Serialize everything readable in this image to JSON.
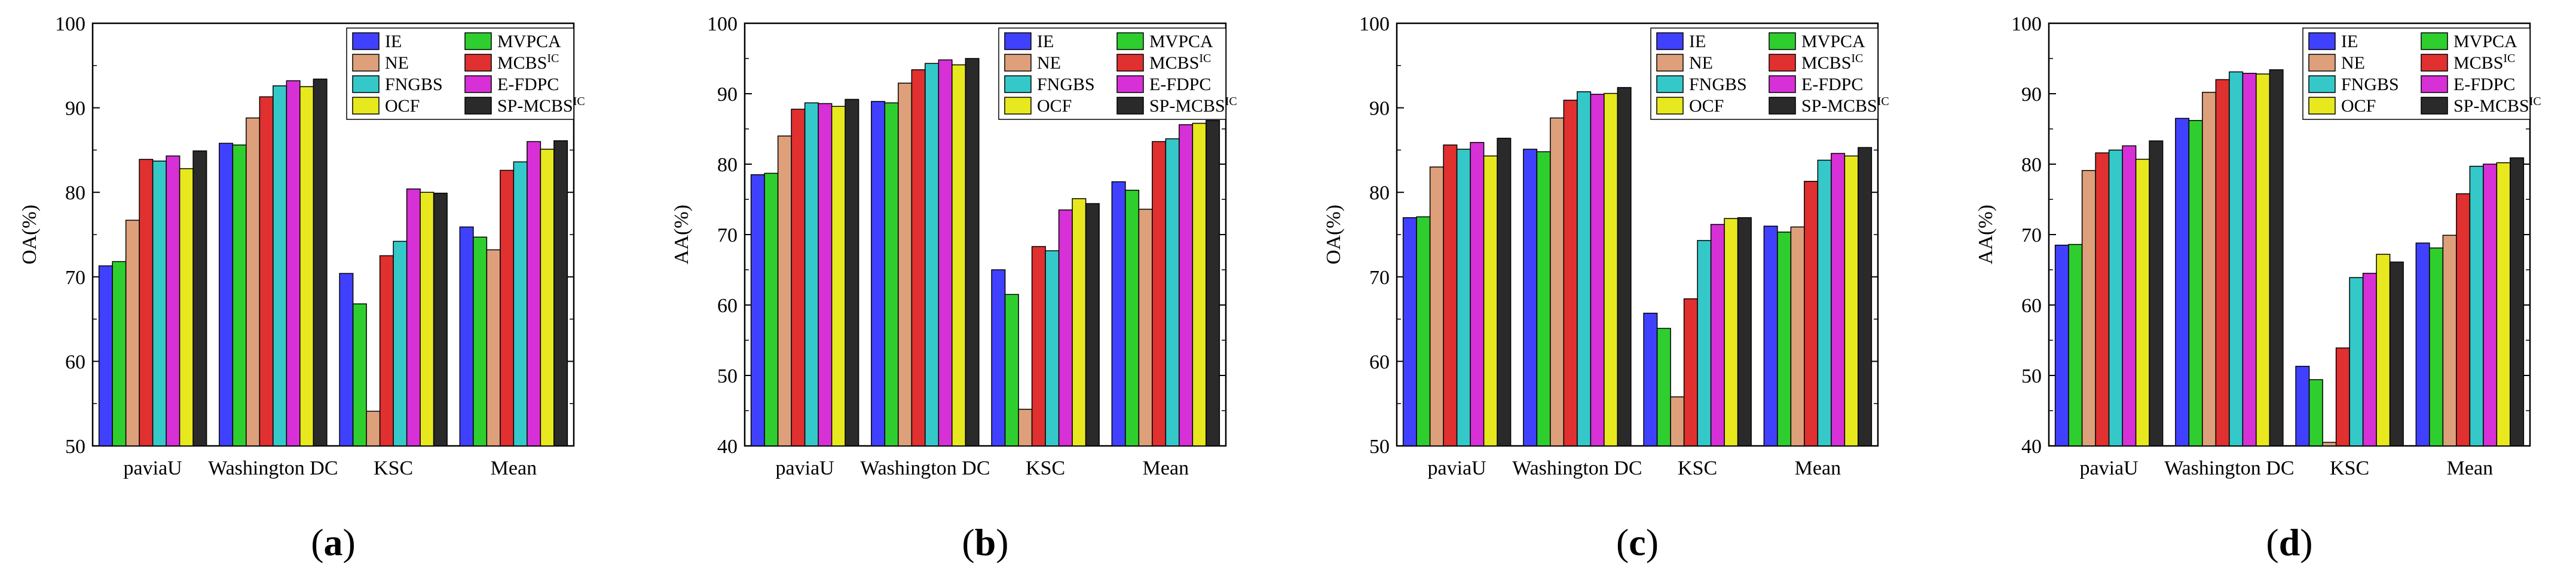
{
  "figure": {
    "series_colors": [
      "#4040ff",
      "#2fce2f",
      "#dda07a",
      "#e03030",
      "#35c8c8",
      "#d630d6",
      "#e8e81e",
      "#2a2a2a"
    ]
  },
  "chart_data": [
    {
      "type": "bar",
      "panel_label": "(a)",
      "ylabel": "OA(%)",
      "xlabel": "",
      "ylim": [
        50,
        100
      ],
      "yticks": [
        "50",
        "60",
        "70",
        "80",
        "90",
        "100"
      ],
      "categories": [
        "paviaU",
        "Washington DC",
        "KSC",
        "Mean"
      ],
      "series": [
        {
          "name": "IE",
          "sup": "",
          "values": [
            71.3,
            85.8,
            70.4,
            75.9
          ]
        },
        {
          "name": "MVPCA",
          "sup": "",
          "values": [
            71.8,
            85.6,
            66.8,
            74.7
          ]
        },
        {
          "name": "NE",
          "sup": "",
          "values": [
            76.7,
            88.8,
            54.1,
            73.2
          ]
        },
        {
          "name": "MCBS",
          "sup": "IC",
          "values": [
            83.9,
            91.3,
            72.5,
            82.6
          ]
        },
        {
          "name": "FNGBS",
          "sup": "",
          "values": [
            83.7,
            92.6,
            74.2,
            83.6
          ]
        },
        {
          "name": "E-FDPC",
          "sup": "",
          "values": [
            84.3,
            93.2,
            80.4,
            86.0
          ]
        },
        {
          "name": "OCF",
          "sup": "",
          "values": [
            82.8,
            92.5,
            80.0,
            85.1
          ]
        },
        {
          "name": "SP-MCBS",
          "sup": "IC",
          "values": [
            84.9,
            93.4,
            79.9,
            86.1
          ]
        }
      ]
    },
    {
      "type": "bar",
      "panel_label": "(b)",
      "ylabel": "AA(%)",
      "xlabel": "",
      "ylim": [
        40,
        100
      ],
      "yticks": [
        "40",
        "50",
        "60",
        "70",
        "80",
        "90",
        "100"
      ],
      "categories": [
        "paviaU",
        "Washington DC",
        "KSC",
        "Mean"
      ],
      "series": [
        {
          "name": "IE",
          "sup": "",
          "values": [
            78.5,
            88.9,
            65.0,
            77.5
          ]
        },
        {
          "name": "MVPCA",
          "sup": "",
          "values": [
            78.7,
            88.7,
            61.5,
            76.3
          ]
        },
        {
          "name": "NE",
          "sup": "",
          "values": [
            84.0,
            91.5,
            45.2,
            73.6
          ]
        },
        {
          "name": "MCBS",
          "sup": "IC",
          "values": [
            87.8,
            93.4,
            68.3,
            83.2
          ]
        },
        {
          "name": "FNGBS",
          "sup": "",
          "values": [
            88.7,
            94.3,
            67.7,
            83.6
          ]
        },
        {
          "name": "E-FDPC",
          "sup": "",
          "values": [
            88.6,
            94.8,
            73.5,
            85.6
          ]
        },
        {
          "name": "OCF",
          "sup": "",
          "values": [
            88.2,
            94.1,
            75.1,
            85.8
          ]
        },
        {
          "name": "SP-MCBS",
          "sup": "IC",
          "values": [
            89.2,
            95.0,
            74.4,
            86.2
          ]
        }
      ]
    },
    {
      "type": "bar",
      "panel_label": "(c)",
      "ylabel": "OA(%)",
      "xlabel": "",
      "ylim": [
        50,
        100
      ],
      "yticks": [
        "50",
        "60",
        "70",
        "80",
        "90",
        "100"
      ],
      "categories": [
        "paviaU",
        "Washington DC",
        "KSC",
        "Mean"
      ],
      "series": [
        {
          "name": "IE",
          "sup": "",
          "values": [
            77.0,
            85.1,
            65.7,
            76.0
          ]
        },
        {
          "name": "MVPCA",
          "sup": "",
          "values": [
            77.1,
            84.8,
            63.9,
            75.3
          ]
        },
        {
          "name": "NE",
          "sup": "",
          "values": [
            83.0,
            88.8,
            55.8,
            75.9
          ]
        },
        {
          "name": "MCBS",
          "sup": "IC",
          "values": [
            85.6,
            90.9,
            67.4,
            81.3
          ]
        },
        {
          "name": "FNGBS",
          "sup": "",
          "values": [
            85.1,
            91.9,
            74.3,
            83.8
          ]
        },
        {
          "name": "E-FDPC",
          "sup": "",
          "values": [
            85.9,
            91.6,
            76.2,
            84.6
          ]
        },
        {
          "name": "OCF",
          "sup": "",
          "values": [
            84.3,
            91.7,
            76.9,
            84.3
          ]
        },
        {
          "name": "SP-MCBS",
          "sup": "IC",
          "values": [
            86.4,
            92.4,
            77.0,
            85.3
          ]
        }
      ]
    },
    {
      "type": "bar",
      "panel_label": "(d)",
      "ylabel": "AA(%)",
      "xlabel": "",
      "ylim": [
        40,
        100
      ],
      "yticks": [
        "40",
        "50",
        "60",
        "70",
        "80",
        "90",
        "100"
      ],
      "categories": [
        "paviaU",
        "Washington DC",
        "KSC",
        "Mean"
      ],
      "series": [
        {
          "name": "IE",
          "sup": "",
          "values": [
            68.5,
            86.5,
            51.3,
            68.8
          ]
        },
        {
          "name": "MVPCA",
          "sup": "",
          "values": [
            68.6,
            86.2,
            49.4,
            68.1
          ]
        },
        {
          "name": "NE",
          "sup": "",
          "values": [
            79.1,
            90.2,
            40.5,
            69.9
          ]
        },
        {
          "name": "MCBS",
          "sup": "IC",
          "values": [
            81.6,
            92.0,
            53.9,
            75.8
          ]
        },
        {
          "name": "FNGBS",
          "sup": "",
          "values": [
            82.0,
            93.1,
            63.9,
            79.7
          ]
        },
        {
          "name": "E-FDPC",
          "sup": "",
          "values": [
            82.6,
            92.9,
            64.5,
            80.0
          ]
        },
        {
          "name": "OCF",
          "sup": "",
          "values": [
            80.7,
            92.8,
            67.2,
            80.2
          ]
        },
        {
          "name": "SP-MCBS",
          "sup": "IC",
          "values": [
            83.3,
            93.4,
            66.1,
            80.9
          ]
        }
      ]
    }
  ]
}
